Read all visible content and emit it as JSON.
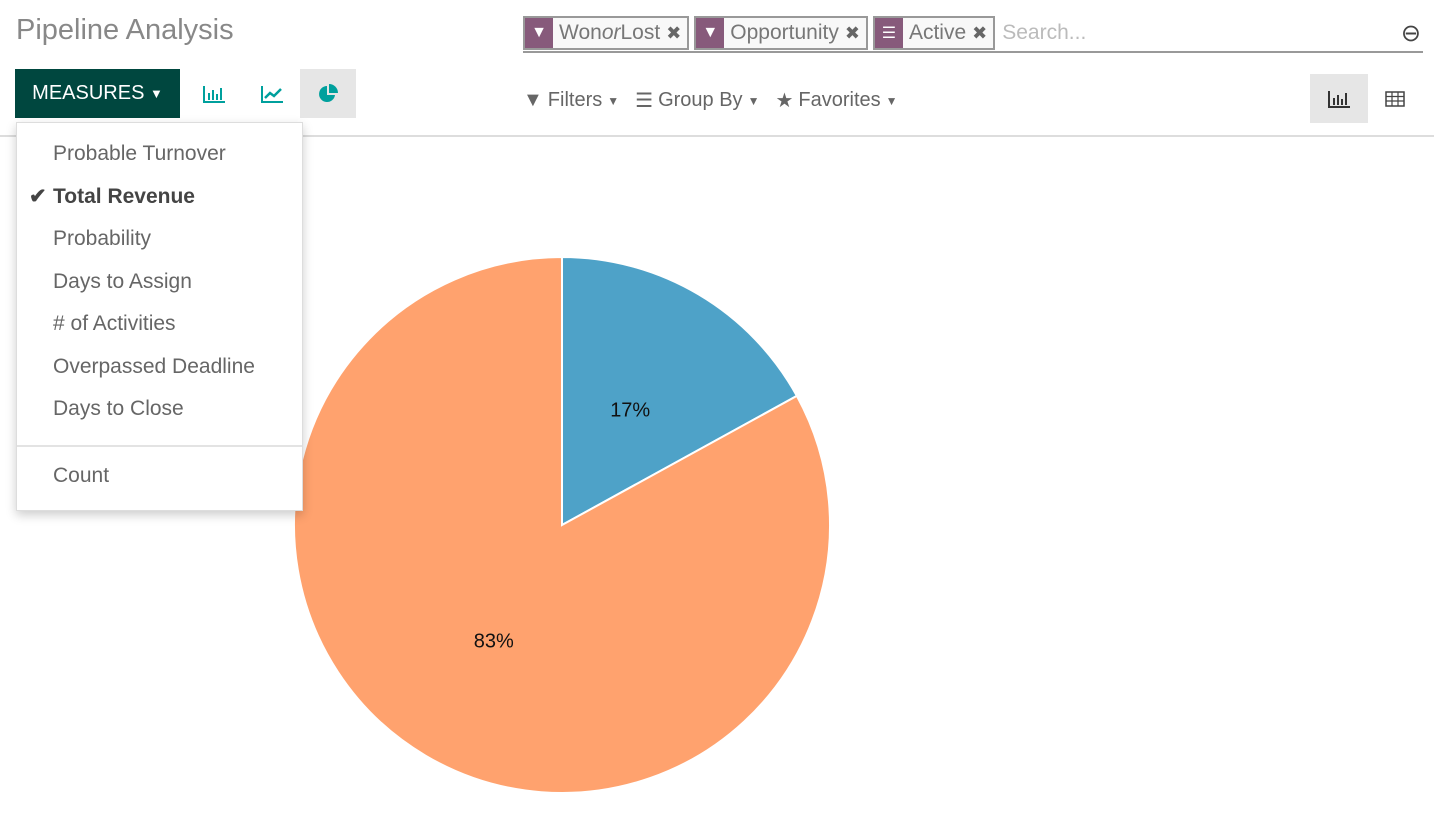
{
  "title": "Pipeline Analysis",
  "search": {
    "facets": [
      {
        "icon": "filter-icon",
        "label": "Won or Lost",
        "parts": [
          "Won ",
          "or",
          " Lost"
        ]
      },
      {
        "icon": "filter-icon",
        "label": "Opportunity"
      },
      {
        "icon": "group-by-icon",
        "label": "Active"
      }
    ],
    "placeholder": "Search..."
  },
  "toolbar": {
    "measures_label": "MEASURES",
    "filters_label": "Filters",
    "groupby_label": "Group By",
    "favorites_label": "Favorites",
    "active_chart": "pie",
    "active_view": "graph"
  },
  "measures_menu": {
    "items": [
      {
        "label": "Probable Turnover",
        "checked": false
      },
      {
        "label": "Total Revenue",
        "checked": true
      },
      {
        "label": "Probability",
        "checked": false
      },
      {
        "label": "Days to Assign",
        "checked": false
      },
      {
        "label": "# of Activities",
        "checked": false
      },
      {
        "label": "Overpassed Deadline",
        "checked": false
      },
      {
        "label": "Days to Close",
        "checked": false
      }
    ],
    "count_label": "Count"
  },
  "chart_data": {
    "type": "pie",
    "slices": [
      {
        "value": 17,
        "label": "17%",
        "color": "#4ea2c8"
      },
      {
        "value": 83,
        "label": "83%",
        "color": "#ffa26e"
      }
    ]
  }
}
